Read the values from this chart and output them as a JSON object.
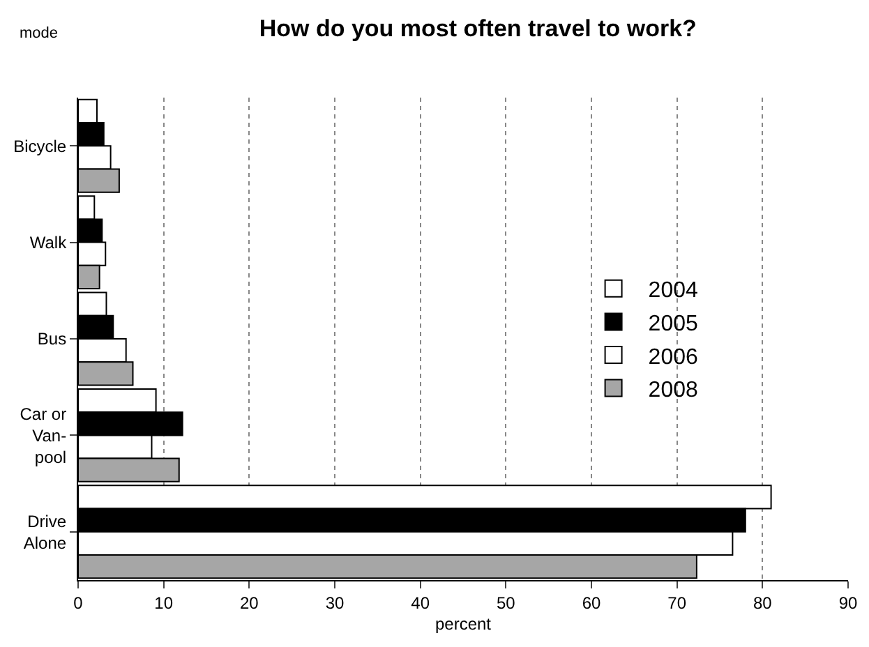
{
  "chart_data": {
    "type": "bar",
    "orientation": "horizontal",
    "title": "How do you most often travel to work?",
    "xlabel": "percent",
    "ylabel": "mode",
    "categories": [
      "Bicycle",
      "Walk",
      "Bus",
      "Car or Van-pool",
      "Drive Alone"
    ],
    "series": [
      {
        "name": "2004",
        "color": "#ffffff",
        "values": [
          2.2,
          1.9,
          3.3,
          9.1,
          81
        ]
      },
      {
        "name": "2005",
        "color": "#000000",
        "values": [
          3.0,
          2.8,
          4.1,
          12.2,
          78
        ]
      },
      {
        "name": "2006",
        "color": "#ffffff",
        "values": [
          3.8,
          3.2,
          5.6,
          8.6,
          76.5
        ]
      },
      {
        "name": "2008",
        "color": "#a6a6a6",
        "values": [
          4.8,
          2.5,
          6.4,
          11.8,
          72.3
        ]
      }
    ],
    "xlim": [
      0,
      90
    ],
    "xticks": [
      0,
      10,
      20,
      30,
      40,
      50,
      60,
      70,
      80,
      90
    ],
    "grid": "x",
    "legend": "right"
  }
}
